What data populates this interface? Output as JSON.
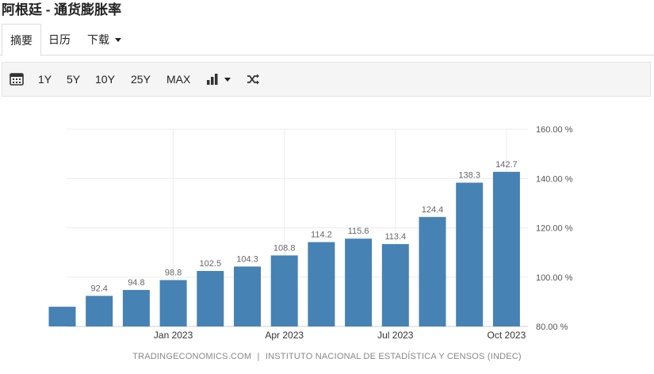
{
  "page": {
    "title": "阿根廷 - 通货膨胀率"
  },
  "tabs": [
    {
      "label": "摘要",
      "active": true
    },
    {
      "label": "日历",
      "active": false
    },
    {
      "label": "下载",
      "active": false
    }
  ],
  "toolbar": {
    "calendar_icon": "calendar-icon",
    "ranges": [
      "1Y",
      "5Y",
      "10Y",
      "25Y",
      "MAX"
    ],
    "chart_type_icon": "bar-chart-icon",
    "compare_icon": "shuffle-icon"
  },
  "footer": {
    "source_left": "TRADINGECONOMICS.COM",
    "separator": "|",
    "source_right": "INSTITUTO NACIONAL DE ESTADÍSTICA Y CENSOS (INDEC)"
  },
  "chart_data": {
    "type": "bar",
    "categories": [
      "2022-10",
      "2022-11",
      "2022-12",
      "2023-01",
      "2023-02",
      "2023-03",
      "2023-04",
      "2023-05",
      "2023-06",
      "2023-07",
      "2023-08",
      "2023-09",
      "2023-10"
    ],
    "values": [
      88.0,
      92.4,
      94.8,
      98.8,
      102.5,
      104.3,
      108.8,
      114.2,
      115.6,
      113.4,
      124.4,
      138.3,
      142.7
    ],
    "data_labels": [
      "",
      "92.4",
      "94.8",
      "98.8",
      "102.5",
      "104.3",
      "108.8",
      "114.2",
      "115.6",
      "113.4",
      "124.4",
      "138.3",
      "142.7"
    ],
    "x_tick_labels": [
      {
        "category": "2023-01",
        "label": "Jan 2023"
      },
      {
        "category": "2023-04",
        "label": "Apr 2023"
      },
      {
        "category": "2023-07",
        "label": "Jul 2023"
      },
      {
        "category": "2023-10",
        "label": "Oct 2023"
      }
    ],
    "y_ticks": [
      80,
      100,
      120,
      140,
      160
    ],
    "y_tick_labels": [
      "80.00 %",
      "100.00 %",
      "120.00 %",
      "140.00 %",
      "160.00 %"
    ],
    "ylim": [
      80,
      160
    ],
    "bar_color": "#4682b4",
    "grid": true,
    "y_axis_side": "right"
  }
}
